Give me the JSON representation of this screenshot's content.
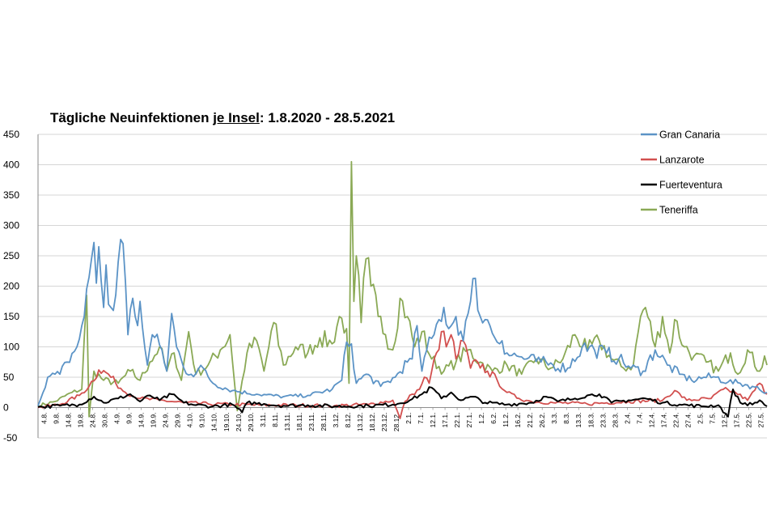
{
  "chart_data": {
    "type": "line",
    "title_parts": [
      "Tägliche Neuinfektionen ",
      "je Insel",
      ": 1.8.2020 - 28.5.2021"
    ],
    "ylim": [
      -50,
      450
    ],
    "yticks": [
      -50,
      0,
      50,
      100,
      150,
      200,
      250,
      300,
      350,
      400,
      450
    ],
    "x_start": "1.8.2020",
    "x_end": "28.5.2021",
    "xticks": [
      "4.8.",
      "9.8.",
      "14.8.",
      "19.8.",
      "24.8.",
      "30.8.",
      "4.9.",
      "9.9.",
      "14.9.",
      "19.9.",
      "24.9.",
      "29.9.",
      "4.10.",
      "9.10.",
      "14.10.",
      "19.10.",
      "24.10.",
      "29.10.",
      "3.11.",
      "8.11.",
      "13.11.",
      "18.11.",
      "23.11.",
      "28.11.",
      "3.12.",
      "8.12.",
      "13.12.",
      "18.12.",
      "23.12.",
      "28.12.",
      "2.1.",
      "7.1.",
      "12.1.",
      "17.1.",
      "22.1.",
      "27.1.",
      "1.2.",
      "6.2.",
      "11.2.",
      "16.2.",
      "21.2.",
      "26.2.",
      "3.3.",
      "8.3.",
      "13.3.",
      "18.3.",
      "23.3.",
      "28.3.",
      "2.4.",
      "7.4.",
      "12.4.",
      "17.4.",
      "22.4.",
      "27.4.",
      "2.5.",
      "7.5.",
      "12.5.",
      "17.5.",
      "22.5.",
      "27.5."
    ],
    "grid": true,
    "legend_position": "top-right",
    "series": [
      {
        "name": "Gran Canaria",
        "color": "#5b93c6",
        "points": [
          [
            "1.8.2020",
            3
          ],
          [
            "5.8.2020",
            50
          ],
          [
            "10.8.2020",
            55
          ],
          [
            "13.8.2020",
            75
          ],
          [
            "17.8.2020",
            100
          ],
          [
            "20.8.2020",
            150
          ],
          [
            "22.8.2020",
            215
          ],
          [
            "24.8.2020",
            272
          ],
          [
            "25.8.2020",
            205
          ],
          [
            "26.8.2020",
            265
          ],
          [
            "28.8.2020",
            165
          ],
          [
            "29.8.2020",
            235
          ],
          [
            "30.8.2020",
            170
          ],
          [
            "1.9.2020",
            160
          ],
          [
            "3.9.2020",
            240
          ],
          [
            "4.9.2020",
            277
          ],
          [
            "5.9.2020",
            270
          ],
          [
            "7.9.2020",
            120
          ],
          [
            "9.9.2020",
            180
          ],
          [
            "10.9.2020",
            150
          ],
          [
            "11.9.2020",
            135
          ],
          [
            "12.9.2020",
            175
          ],
          [
            "15.9.2020",
            70
          ],
          [
            "17.9.2020",
            120
          ],
          [
            "21.9.2020",
            95
          ],
          [
            "23.9.2020",
            60
          ],
          [
            "25.9.2020",
            155
          ],
          [
            "27.9.2020",
            100
          ],
          [
            "30.9.2020",
            65
          ],
          [
            "3.10.2020",
            55
          ],
          [
            "8.10.2020",
            65
          ],
          [
            "12.10.2020",
            40
          ],
          [
            "20.10.2020",
            28
          ],
          [
            "30.10.2020",
            22
          ],
          [
            "10.11.2020",
            18
          ],
          [
            "20.11.2020",
            20
          ],
          [
            "30.11.2020",
            30
          ],
          [
            "4.12.2020",
            45
          ],
          [
            "6.12.2020",
            108
          ],
          [
            "8.12.2020",
            105
          ],
          [
            "10.12.2020",
            40
          ],
          [
            "14.12.2020",
            55
          ],
          [
            "20.12.2020",
            35
          ],
          [
            "26.12.2020",
            50
          ],
          [
            "31.12.2020",
            75
          ],
          [
            "2.1.2021",
            80
          ],
          [
            "4.1.2021",
            135
          ],
          [
            "6.1.2021",
            60
          ],
          [
            "8.1.2021",
            95
          ],
          [
            "11.1.2021",
            120
          ],
          [
            "13.1.2021",
            145
          ],
          [
            "15.1.2021",
            165
          ],
          [
            "17.1.2021",
            130
          ],
          [
            "20.1.2021",
            150
          ],
          [
            "23.1.2021",
            110
          ],
          [
            "25.1.2021",
            155
          ],
          [
            "26.1.2021",
            175
          ],
          [
            "28.1.2021",
            213
          ],
          [
            "30.1.2021",
            150
          ],
          [
            "1.2.2021",
            145
          ],
          [
            "3.2.2021",
            135
          ],
          [
            "5.2.2021",
            115
          ],
          [
            "8.2.2021",
            110
          ],
          [
            "10.2.2021",
            90
          ],
          [
            "14.2.2021",
            85
          ],
          [
            "18.2.2021",
            80
          ],
          [
            "24.2.2021",
            75
          ],
          [
            "1.3.2021",
            70
          ],
          [
            "7.3.2021",
            65
          ],
          [
            "13.3.2021",
            100
          ],
          [
            "18.3.2021",
            95
          ],
          [
            "23.3.2021",
            90
          ],
          [
            "28.3.2021",
            80
          ],
          [
            "2.4.2021",
            65
          ],
          [
            "7.4.2021",
            60
          ],
          [
            "12.4.2021",
            95
          ],
          [
            "17.4.2021",
            70
          ],
          [
            "22.4.2021",
            55
          ],
          [
            "27.4.2021",
            45
          ],
          [
            "2.5.2021",
            50
          ],
          [
            "7.5.2021",
            50
          ],
          [
            "12.5.2021",
            42
          ],
          [
            "17.5.2021",
            40
          ],
          [
            "22.5.2021",
            35
          ],
          [
            "28.5.2021",
            25
          ]
        ]
      },
      {
        "name": "Lanzarote",
        "color": "#d2504f",
        "points": [
          [
            "1.8.2020",
            0
          ],
          [
            "10.8.2020",
            5
          ],
          [
            "18.8.2020",
            20
          ],
          [
            "22.8.2020",
            35
          ],
          [
            "26.8.2020",
            62
          ],
          [
            "30.8.2020",
            55
          ],
          [
            "2.9.2020",
            40
          ],
          [
            "6.9.2020",
            25
          ],
          [
            "12.9.2020",
            15
          ],
          [
            "20.9.2020",
            12
          ],
          [
            "30.9.2020",
            8
          ],
          [
            "10.10.2020",
            6
          ],
          [
            "20.10.2020",
            5
          ],
          [
            "1.11.2020",
            4
          ],
          [
            "15.11.2020",
            4
          ],
          [
            "1.12.2020",
            3
          ],
          [
            "15.12.2020",
            5
          ],
          [
            "25.12.2020",
            12
          ],
          [
            "28.12.2020",
            -18
          ],
          [
            "30.12.2020",
            10
          ],
          [
            "2.1.2021",
            22
          ],
          [
            "5.1.2021",
            30
          ],
          [
            "7.1.2021",
            50
          ],
          [
            "9.1.2021",
            40
          ],
          [
            "12.1.2021",
            90
          ],
          [
            "14.1.2021",
            125
          ],
          [
            "16.1.2021",
            100
          ],
          [
            "18.1.2021",
            120
          ],
          [
            "20.1.2021",
            80
          ],
          [
            "23.1.2021",
            110
          ],
          [
            "26.1.2021",
            65
          ],
          [
            "29.1.2021",
            75
          ],
          [
            "2.2.2021",
            60
          ],
          [
            "6.2.2021",
            45
          ],
          [
            "10.2.2021",
            25
          ],
          [
            "15.2.2021",
            15
          ],
          [
            "20.2.2021",
            10
          ],
          [
            "1.3.2021",
            8
          ],
          [
            "15.3.2021",
            6
          ],
          [
            "1.4.2021",
            10
          ],
          [
            "15.4.2021",
            12
          ],
          [
            "20.4.2021",
            28
          ],
          [
            "25.4.2021",
            12
          ],
          [
            "5.5.2021",
            15
          ],
          [
            "10.5.2021",
            30
          ],
          [
            "15.5.2021",
            25
          ],
          [
            "20.5.2021",
            12
          ],
          [
            "25.5.2021",
            40
          ],
          [
            "28.5.2021",
            22
          ]
        ]
      },
      {
        "name": "Fuerteventura",
        "color": "#000000",
        "points": [
          [
            "1.8.2020",
            1
          ],
          [
            "10.8.2020",
            3
          ],
          [
            "18.8.2020",
            5
          ],
          [
            "24.8.2020",
            18
          ],
          [
            "28.8.2020",
            8
          ],
          [
            "3.9.2020",
            15
          ],
          [
            "8.9.2020",
            22
          ],
          [
            "12.9.2020",
            10
          ],
          [
            "16.9.2020",
            20
          ],
          [
            "20.9.2020",
            12
          ],
          [
            "25.9.2020",
            22
          ],
          [
            "30.9.2020",
            8
          ],
          [
            "5.10.2020",
            4
          ],
          [
            "12.10.2020",
            2
          ],
          [
            "20.10.2020",
            5
          ],
          [
            "24.10.2020",
            -8
          ],
          [
            "26.10.2020",
            8
          ],
          [
            "2.11.2020",
            6
          ],
          [
            "10.11.2020",
            3
          ],
          [
            "20.11.2020",
            4
          ],
          [
            "1.12.2020",
            2
          ],
          [
            "15.12.2020",
            3
          ],
          [
            "25.12.2020",
            5
          ],
          [
            "1.1.2021",
            12
          ],
          [
            "6.1.2021",
            22
          ],
          [
            "10.1.2021",
            33
          ],
          [
            "14.1.2021",
            15
          ],
          [
            "18.1.2021",
            25
          ],
          [
            "22.1.2021",
            12
          ],
          [
            "27.1.2021",
            18
          ],
          [
            "1.2.2021",
            8
          ],
          [
            "10.2.2021",
            5
          ],
          [
            "20.2.2021",
            8
          ],
          [
            "26.2.2021",
            18
          ],
          [
            "3.3.2021",
            10
          ],
          [
            "10.3.2021",
            15
          ],
          [
            "15.3.2021",
            20
          ],
          [
            "20.3.2021",
            22
          ],
          [
            "25.3.2021",
            8
          ],
          [
            "1.4.2021",
            12
          ],
          [
            "8.4.2021",
            15
          ],
          [
            "15.4.2021",
            8
          ],
          [
            "22.4.2021",
            5
          ],
          [
            "1.5.2021",
            2
          ],
          [
            "8.5.2021",
            4
          ],
          [
            "12.5.2021",
            -15
          ],
          [
            "14.5.2021",
            30
          ],
          [
            "17.5.2021",
            8
          ],
          [
            "22.5.2021",
            5
          ],
          [
            "25.5.2021",
            12
          ],
          [
            "28.5.2021",
            2
          ]
        ]
      },
      {
        "name": "Teneriffa",
        "color": "#8aa955",
        "points": [
          [
            "1.8.2020",
            3
          ],
          [
            "8.8.2020",
            10
          ],
          [
            "15.8.2020",
            25
          ],
          [
            "19.8.2020",
            30
          ],
          [
            "21.8.2020",
            185
          ],
          [
            "22.8.2020",
            -15
          ],
          [
            "24.8.2020",
            60
          ],
          [
            "28.8.2020",
            45
          ],
          [
            "3.9.2020",
            40
          ],
          [
            "8.9.2020",
            60
          ],
          [
            "12.9.2020",
            45
          ],
          [
            "16.9.2020",
            75
          ],
          [
            "20.9.2020",
            100
          ],
          [
            "23.9.2020",
            60
          ],
          [
            "26.9.2020",
            90
          ],
          [
            "29.9.2020",
            45
          ],
          [
            "2.10.2020",
            125
          ],
          [
            "5.10.2020",
            55
          ],
          [
            "10.10.2020",
            70
          ],
          [
            "15.10.2020",
            95
          ],
          [
            "19.10.2020",
            120
          ],
          [
            "22.10.2020",
            -5
          ],
          [
            "26.10.2020",
            90
          ],
          [
            "30.10.2020",
            110
          ],
          [
            "2.11.2020",
            60
          ],
          [
            "6.11.2020",
            140
          ],
          [
            "10.11.2020",
            70
          ],
          [
            "15.11.2020",
            100
          ],
          [
            "20.11.2020",
            90
          ],
          [
            "25.11.2020",
            115
          ],
          [
            "30.11.2020",
            105
          ],
          [
            "3.12.2020",
            150
          ],
          [
            "6.12.2020",
            130
          ],
          [
            "7.12.2020",
            40
          ],
          [
            "8.12.2020",
            405
          ],
          [
            "9.12.2020",
            175
          ],
          [
            "10.12.2020",
            250
          ],
          [
            "12.12.2020",
            140
          ],
          [
            "14.12.2020",
            245
          ],
          [
            "16.12.2020",
            200
          ],
          [
            "19.12.2020",
            150
          ],
          [
            "22.12.2020",
            120
          ],
          [
            "25.12.2020",
            95
          ],
          [
            "28.12.2020",
            180
          ],
          [
            "31.12.2020",
            150
          ],
          [
            "3.1.2021",
            100
          ],
          [
            "6.1.2021",
            125
          ],
          [
            "10.1.2021",
            80
          ],
          [
            "15.1.2021",
            60
          ],
          [
            "20.1.2021",
            75
          ],
          [
            "25.1.2021",
            95
          ],
          [
            "30.1.2021",
            75
          ],
          [
            "4.2.2021",
            60
          ],
          [
            "10.2.2021",
            70
          ],
          [
            "16.2.2021",
            55
          ],
          [
            "22.2.2021",
            80
          ],
          [
            "28.2.2021",
            65
          ],
          [
            "5.3.2021",
            80
          ],
          [
            "10.3.2021",
            120
          ],
          [
            "15.3.2021",
            95
          ],
          [
            "20.3.2021",
            110
          ],
          [
            "25.3.2021",
            80
          ],
          [
            "30.3.2021",
            65
          ],
          [
            "3.4.2021",
            70
          ],
          [
            "6.4.2021",
            150
          ],
          [
            "8.4.2021",
            165
          ],
          [
            "12.4.2021",
            100
          ],
          [
            "15.4.2021",
            150
          ],
          [
            "18.4.2021",
            90
          ],
          [
            "20.4.2021",
            145
          ],
          [
            "24.4.2021",
            100
          ],
          [
            "28.4.2021",
            85
          ],
          [
            "3.5.2021",
            75
          ],
          [
            "8.5.2021",
            60
          ],
          [
            "13.5.2021",
            90
          ],
          [
            "16.5.2021",
            55
          ],
          [
            "20.5.2021",
            95
          ],
          [
            "25.5.2021",
            60
          ],
          [
            "27.5.2021",
            85
          ],
          [
            "28.5.2021",
            70
          ]
        ]
      }
    ]
  }
}
